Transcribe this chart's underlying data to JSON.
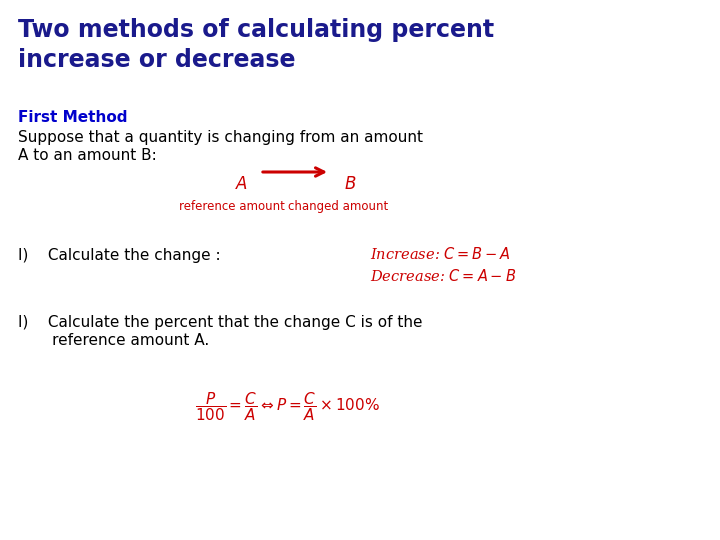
{
  "title_line1": "Two methods of calculating percent",
  "title_line2": "increase or decrease",
  "title_color": "#1a1a8c",
  "title_fontsize": 17,
  "background_color": "#ffffff",
  "first_method_label": "First Method",
  "first_method_color": "#0000cc",
  "first_method_fontsize": 11,
  "suppose_text": "Suppose that a quantity is changing from an amount\nA to an amount B:",
  "suppose_color": "#000000",
  "suppose_fontsize": 11,
  "arrow_color": "#cc0000",
  "label_color": "#cc0000",
  "ref_amount_text": "reference amount",
  "changed_amount_text": "changed amount",
  "ref_changed_fontsize": 8.5,
  "step1_text": "I)    Calculate the change :",
  "step1_fontsize": 11,
  "step1_color": "#000000",
  "increase_text": "Increase: $C = B - A$",
  "decrease_text": "Decrease: $C = A - B$",
  "formula_color": "#cc0000",
  "formula_fontsize": 10.5,
  "step2_text_line1": "I)    Calculate the percent that the change C is of the",
  "step2_text_line2": "       reference amount A.",
  "step2_fontsize": 11,
  "step2_color": "#000000",
  "formula2_text": "$\\dfrac{P}{100} = \\dfrac{C}{A} \\Leftrightarrow P = \\dfrac{C}{A} \\times 100\\%$",
  "formula2_fontsize": 11,
  "formula2_color": "#cc0000"
}
